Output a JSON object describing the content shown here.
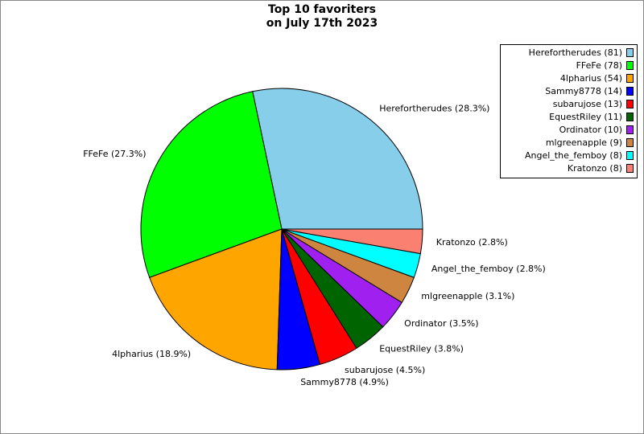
{
  "chart_data": {
    "type": "pie",
    "title": [
      "Top 10 favoriters",
      "on July 17th 2023"
    ],
    "values": [
      81,
      78,
      54,
      14,
      13,
      11,
      10,
      9,
      8,
      8
    ],
    "slice_labels": [
      "Herefortherudes (28.3%)",
      "FFeFe (27.3%)",
      "4lpharius (18.9%)",
      "Sammy8778 (4.9%)",
      "subarujose (4.5%)",
      "EquestRiley (3.8%)",
      "Ordinator (3.5%)",
      "mlgreenapple (3.1%)",
      "Angel_the_femboy (2.8%)",
      "Kratonzo (2.8%)"
    ],
    "legend_labels": [
      "Herefortherudes (81)",
      "FFeFe (78)",
      "4lpharius (54)",
      "Sammy8778 (14)",
      "subarujose (13)",
      "EquestRiley (11)",
      "Ordinator (10)",
      "mlgreenapple (9)",
      "Angel_the_femboy (8)",
      "Kratonzo (8)"
    ],
    "colors": [
      "#87ceeb",
      "#00ff00",
      "#ffa500",
      "#0000ff",
      "#ff0000",
      "#006400",
      "#a020f0",
      "#cd853f",
      "#00ffff",
      "#fa8072"
    ],
    "start_angle": 0,
    "direction": "counterclockwise",
    "legend": "upper right"
  }
}
